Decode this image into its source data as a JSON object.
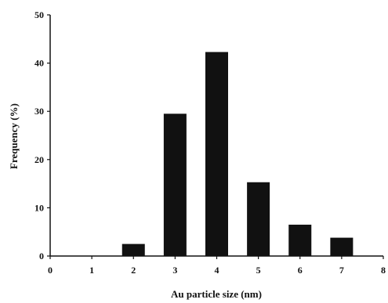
{
  "chart_data": {
    "type": "bar",
    "title": "",
    "xlabel": "Au particle size (nm)",
    "ylabel": "Frequency (%)",
    "x": [
      2,
      3,
      4,
      5,
      6,
      7
    ],
    "values": [
      2.5,
      29.5,
      42.3,
      15.3,
      6.5,
      3.8
    ],
    "xlim": [
      0,
      8
    ],
    "ylim": [
      0,
      50
    ],
    "xticks": [
      "0",
      "1",
      "2",
      "3",
      "4",
      "5",
      "6",
      "7",
      "8"
    ],
    "yticks": [
      "0",
      "10",
      "20",
      "30",
      "40",
      "50"
    ],
    "bar_color": "#111111",
    "grid": false,
    "legend": "none"
  }
}
